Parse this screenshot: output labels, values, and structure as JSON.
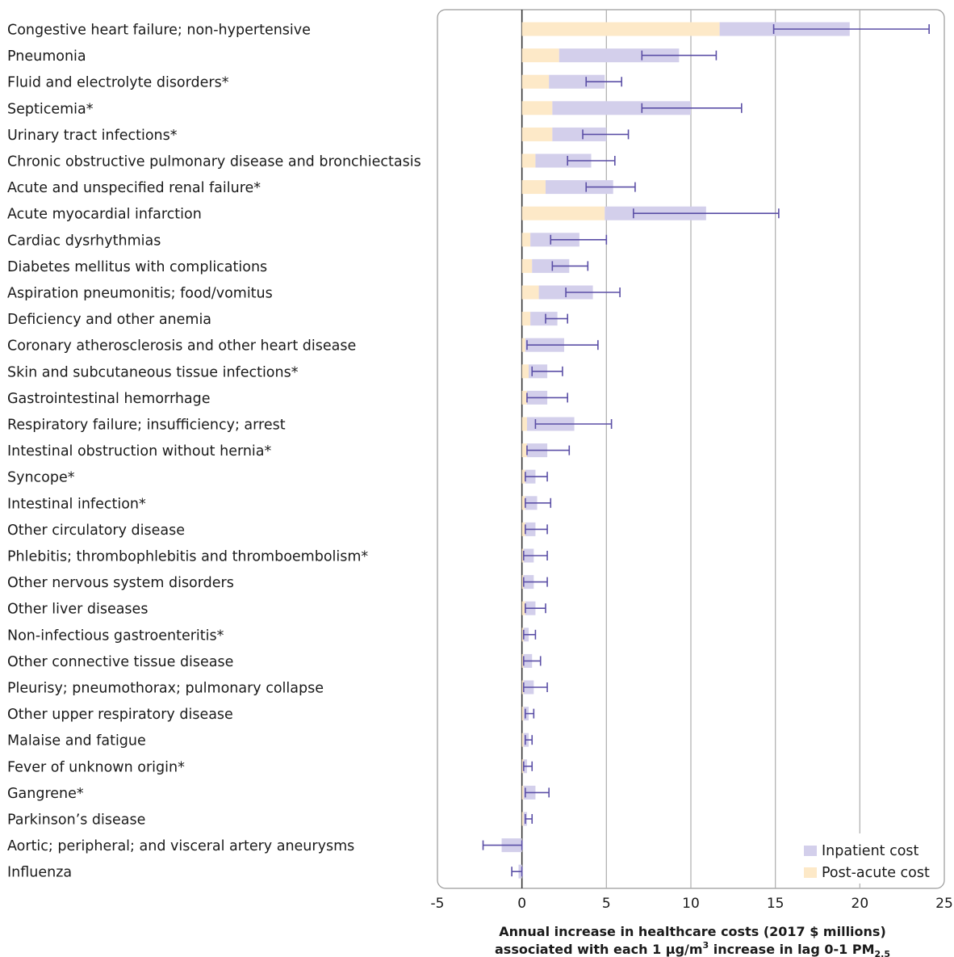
{
  "chart_data": {
    "type": "bar",
    "stacked": true,
    "orientation": "horizontal",
    "categories": [
      "Congestive heart failure; non-hypertensive",
      "Pneumonia",
      "Fluid and electrolyte disorders*",
      "Septicemia*",
      "Urinary tract infections*",
      "Chronic obstructive pulmonary disease and bronchiectasis",
      "Acute and unspecified renal failure*",
      "Acute myocardial infarction",
      "Cardiac dysrhythmias",
      "Diabetes mellitus with complications",
      "Aspiration pneumonitis; food/vomitus",
      "Deficiency and other anemia",
      "Coronary atherosclerosis and other heart disease",
      "Skin and subcutaneous tissue infections*",
      "Gastrointestinal hemorrhage",
      "Respiratory failure; insufficiency; arrest",
      "Intestinal obstruction without hernia*",
      "Syncope*",
      "Intestinal infection*",
      "Other circulatory disease",
      "Phlebitis; thrombophlebitis and thromboembolism*",
      "Other nervous system disorders",
      "Other liver diseases",
      "Non-infectious gastroenteritis*",
      "Other connective tissue disease",
      "Pleurisy; pneumothorax; pulmonary collapse",
      "Other upper respiratory disease",
      "Malaise and fatigue",
      "Fever of unknown origin*",
      "Gangrene*",
      "Parkinson’s disease",
      "Aortic; peripheral; and visceral artery aneurysms",
      "Influenza"
    ],
    "series": [
      {
        "name": "Post-acute cost",
        "color": "#fde9c8",
        "values": [
          11.7,
          2.2,
          1.6,
          1.8,
          1.8,
          0.8,
          1.4,
          4.9,
          0.5,
          0.6,
          1.0,
          0.5,
          0.2,
          0.4,
          0.3,
          0.3,
          0.3,
          0.2,
          0.2,
          0.2,
          0.1,
          0.1,
          0.2,
          0.1,
          0.1,
          0.1,
          0.1,
          0.1,
          0.1,
          0.1,
          0.1,
          0.0,
          0.0
        ]
      },
      {
        "name": "Inpatient cost",
        "color": "#d3cfeb",
        "values": [
          7.7,
          7.1,
          3.3,
          8.2,
          3.2,
          3.3,
          4.0,
          6.0,
          2.9,
          2.2,
          3.2,
          1.6,
          2.3,
          1.1,
          1.2,
          2.8,
          1.2,
          0.6,
          0.7,
          0.6,
          0.6,
          0.6,
          0.6,
          0.3,
          0.5,
          0.6,
          0.3,
          0.3,
          0.2,
          0.7,
          0.2,
          -1.2,
          -0.2
        ]
      }
    ],
    "error_bars": {
      "color": "#5b4fa6",
      "low": [
        14.9,
        7.1,
        3.8,
        7.1,
        3.6,
        2.7,
        3.8,
        6.6,
        1.7,
        1.8,
        2.6,
        1.4,
        0.3,
        0.6,
        0.3,
        0.8,
        0.3,
        0.2,
        0.2,
        0.2,
        0.1,
        0.1,
        0.2,
        0.1,
        0.1,
        0.1,
        0.2,
        0.2,
        0.1,
        0.2,
        0.2,
        -2.3,
        -0.6
      ],
      "high": [
        24.1,
        11.5,
        5.9,
        13.0,
        6.3,
        5.5,
        6.7,
        15.2,
        5.0,
        3.9,
        5.8,
        2.7,
        4.5,
        2.4,
        2.7,
        5.3,
        2.8,
        1.5,
        1.7,
        1.5,
        1.5,
        1.5,
        1.4,
        0.8,
        1.1,
        1.5,
        0.7,
        0.6,
        0.6,
        1.6,
        0.6,
        0.0,
        0.0
      ]
    },
    "xlim": [
      -5,
      25
    ],
    "xticks": [
      -5,
      0,
      5,
      10,
      15,
      20,
      25
    ],
    "tick_labels": [
      "-5",
      "0",
      "5",
      "10",
      "15",
      "20",
      "25"
    ],
    "xlabel_line1": "Annual increase in healthcare costs (2017 $ millions)",
    "xlabel_line2": "associated with each 1 µg/m",
    "xlabel_sup": "3",
    "xlabel_line2b": " increase in lag 0-1 PM",
    "xlabel_sub": "2.5",
    "grid": "vertical",
    "legend_position": "bottom-right",
    "legend": [
      "Inpatient cost",
      "Post-acute cost"
    ]
  }
}
